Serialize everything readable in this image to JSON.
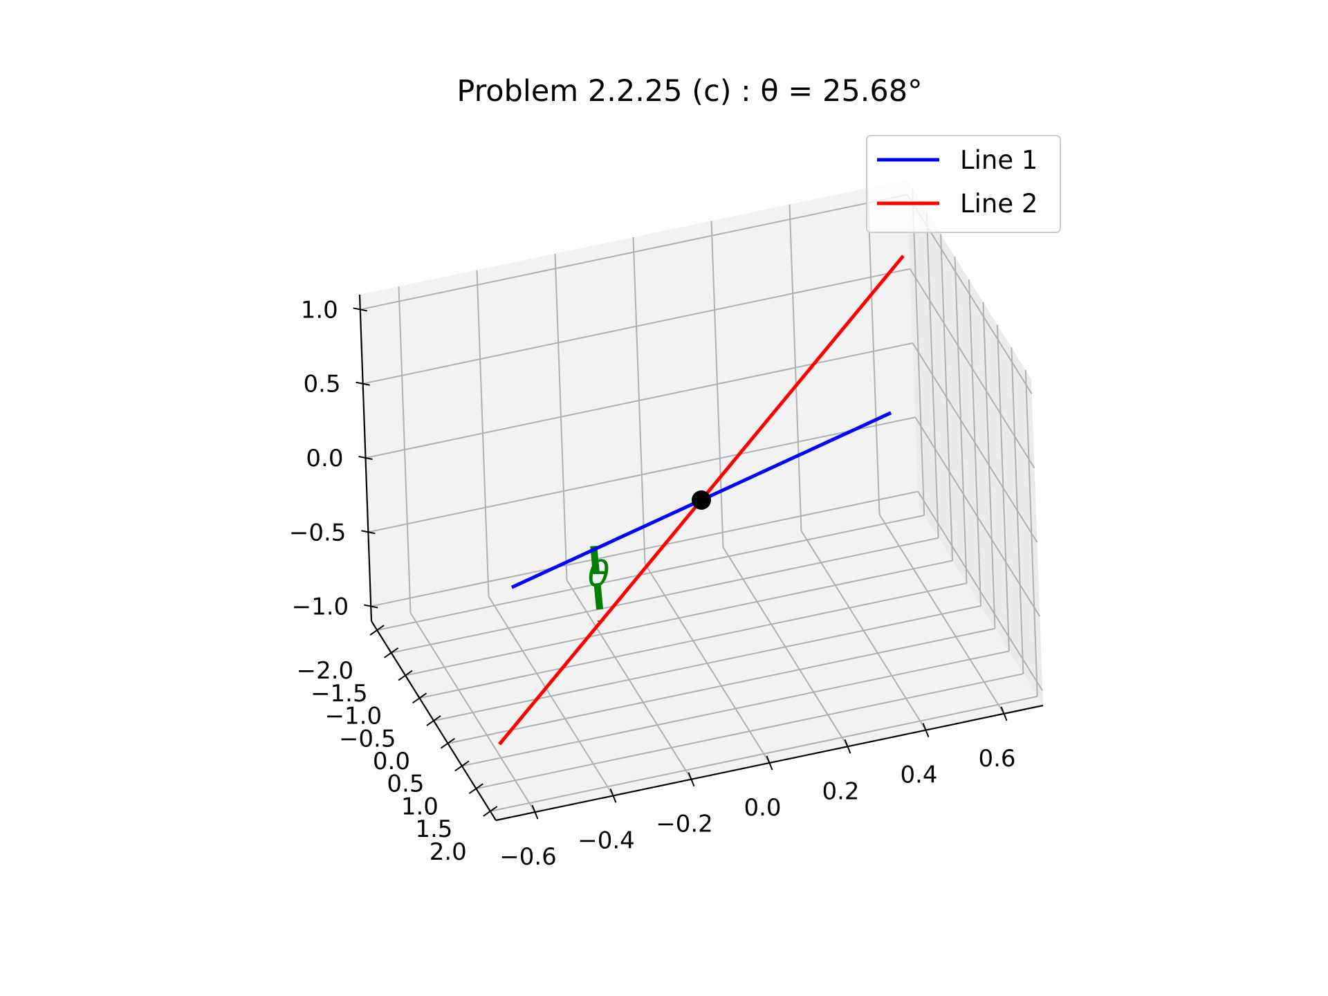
{
  "chart_data": {
    "type": "line3d",
    "title": "Problem 2.2.25 (c) : θ = 25.68°",
    "x_ticks": [
      "−0.6",
      "−0.4",
      "−0.2",
      "0.0",
      "0.2",
      "0.4",
      "0.6"
    ],
    "y_ticks": [
      "−2.0",
      "−1.5",
      "−1.0",
      "−0.5",
      "0.0",
      "0.5",
      "1.0",
      "1.5",
      "2.0"
    ],
    "z_ticks": [
      "−1.0",
      "−0.5",
      "0.0",
      "0.5",
      "1.0"
    ],
    "xlim": [
      -0.7,
      0.7
    ],
    "ylim": [
      -2.2,
      2.2
    ],
    "zlim": [
      -1.1,
      1.1
    ],
    "grid": true,
    "legend_position": "top-right",
    "series": [
      {
        "name": "Line 1",
        "color": "#0000ff",
        "points": [
          [
            -0.35,
            -2.0,
            -1.0
          ],
          [
            0.35,
            2.0,
            1.0
          ]
        ]
      },
      {
        "name": "Line 2",
        "color": "#ff0000",
        "points": [
          [
            0.6,
            -1.0,
            1.0
          ],
          [
            -0.6,
            1.0,
            -1.0
          ]
        ]
      }
    ],
    "intersection": {
      "point": [
        0.0,
        0.0,
        0.0
      ],
      "color": "#000000"
    },
    "angle_marker": {
      "label": "θ",
      "color": "#008000",
      "points": [
        [
          -0.2,
          -1.15,
          -0.55
        ],
        [
          -0.3,
          0.5,
          -0.5
        ]
      ]
    }
  }
}
